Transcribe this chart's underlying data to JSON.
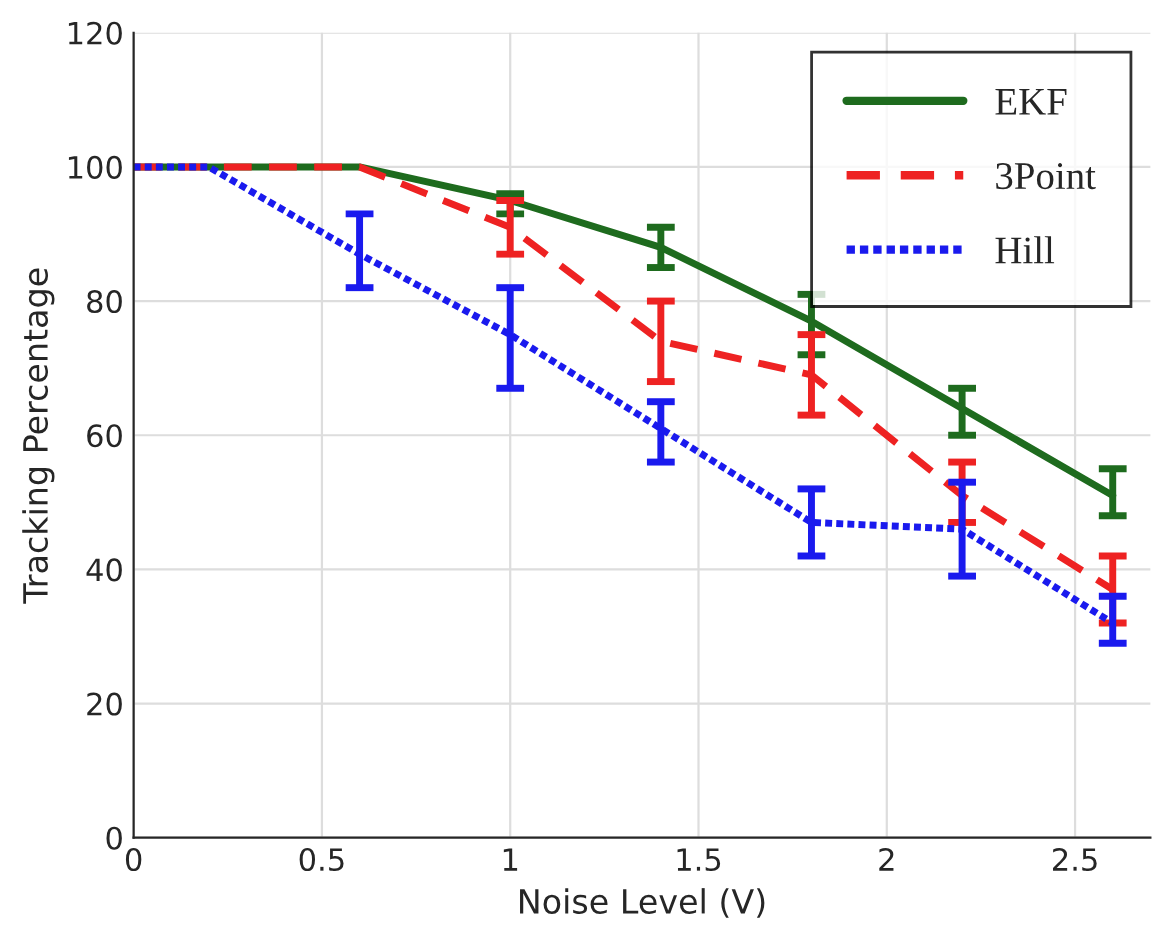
{
  "chart_data": {
    "type": "line",
    "xlabel": "Noise Level (V)",
    "ylabel": "Tracking Percentage",
    "x": [
      0,
      0.2,
      0.6,
      1,
      1.4,
      1.8,
      2.2,
      2.6
    ],
    "series": [
      {
        "name": "EKF",
        "color": "#1e6b1e",
        "line_style": "solid",
        "values": [
          100,
          100,
          100,
          95,
          88,
          77,
          64,
          51
        ],
        "errors": [
          null,
          null,
          null,
          [
            93,
            96
          ],
          [
            85,
            91
          ],
          [
            72,
            81
          ],
          [
            60,
            67
          ],
          [
            48,
            55
          ]
        ]
      },
      {
        "name": "3Point",
        "color": "#ee2222",
        "line_style": "dashed",
        "values": [
          100,
          100,
          100,
          91,
          74,
          69,
          51,
          37
        ],
        "errors": [
          null,
          null,
          null,
          [
            87,
            95
          ],
          [
            68,
            80
          ],
          [
            63,
            75
          ],
          [
            47,
            56
          ],
          [
            32,
            42
          ]
        ]
      },
      {
        "name": "Hill",
        "color": "#1a1aee",
        "line_style": "dotted",
        "values": [
          100,
          100,
          87,
          75,
          61,
          47,
          46,
          32
        ],
        "errors": [
          null,
          null,
          [
            82,
            93
          ],
          [
            67,
            82
          ],
          [
            56,
            65
          ],
          [
            42,
            52
          ],
          [
            39,
            53
          ],
          [
            29,
            36
          ]
        ]
      }
    ],
    "xlim": [
      0,
      2.7
    ],
    "xticks": [
      0,
      0.5,
      1,
      1.5,
      2,
      2.5
    ],
    "ylim": [
      0,
      120
    ],
    "yticks": [
      0,
      20,
      40,
      60,
      80,
      100,
      120
    ],
    "grid": true,
    "legend": "top right",
    "marker": "none"
  }
}
